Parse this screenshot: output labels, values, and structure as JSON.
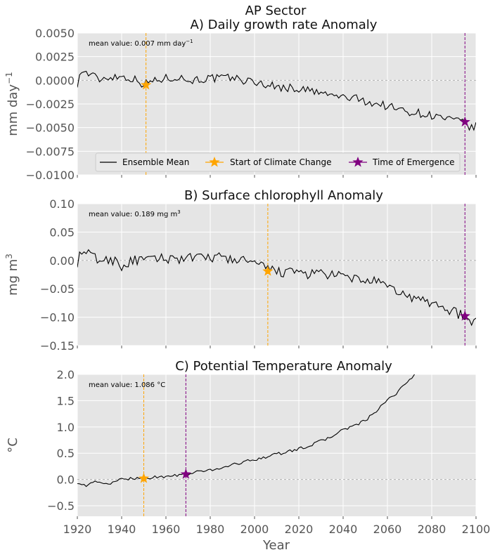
{
  "figure": {
    "suptitle": "AP Sector",
    "xlabel": "Year",
    "xlim": [
      1920,
      2100
    ],
    "xticks": [
      1920,
      1940,
      1960,
      1980,
      2000,
      2020,
      2040,
      2060,
      2080,
      2100
    ],
    "colors": {
      "background": "#e5e5e5",
      "grid": "#ffffff",
      "line": "#000000",
      "start_marker": "#ffa500",
      "toe_marker": "#800080",
      "zero_line": "#b0b0b0",
      "text": "#555555"
    }
  },
  "legend": {
    "placement": "lower-center of panel A",
    "items": [
      {
        "label": "Ensemble Mean",
        "kind": "line",
        "color": "#000000"
      },
      {
        "label": "Start of Climate Change",
        "kind": "star",
        "color": "#ffa500"
      },
      {
        "label": "Time of Emergence",
        "kind": "star",
        "color": "#800080"
      }
    ]
  },
  "chart_data": [
    {
      "type": "line",
      "title": "A) Daily growth rate Anomaly",
      "ylabel_main": "mm day",
      "ylabel_sup": "−1",
      "ylim": [
        -0.01,
        0.005
      ],
      "yticks": [
        -0.01,
        -0.0075,
        -0.005,
        -0.0025,
        0.0,
        0.0025,
        0.005
      ],
      "ytick_labels": [
        "−0.0100",
        "−0.0075",
        "−0.0050",
        "−0.0025",
        "0.0000",
        "0.0025",
        "0.0050"
      ],
      "annotation_main": "mean value: 0.007 mm day",
      "annotation_sup": "−1",
      "grid": true,
      "start_of_climate_change": {
        "x": 1951,
        "y": -0.0005
      },
      "time_of_emergence": {
        "x": 2095,
        "y": -0.0044
      },
      "anchors": [
        [
          1920,
          -0.0003
        ],
        [
          1922,
          0.001
        ],
        [
          1926,
          0.0006
        ],
        [
          1930,
          0.0001
        ],
        [
          1935,
          0.0004
        ],
        [
          1940,
          0.0004
        ],
        [
          1945,
          0.0002
        ],
        [
          1950,
          -0.0004
        ],
        [
          1955,
          0.0
        ],
        [
          1960,
          0.0002
        ],
        [
          1965,
          0.0004
        ],
        [
          1970,
          0.0
        ],
        [
          1975,
          0.0001
        ],
        [
          1980,
          0.0002
        ],
        [
          1985,
          0.0002
        ],
        [
          1990,
          0.0003
        ],
        [
          1995,
          0.0
        ],
        [
          2000,
          -0.0002
        ],
        [
          2005,
          -0.0004
        ],
        [
          2010,
          -0.0007
        ],
        [
          2015,
          -0.0008
        ],
        [
          2020,
          -0.0009
        ],
        [
          2025,
          -0.0011
        ],
        [
          2030,
          -0.0014
        ],
        [
          2035,
          -0.0016
        ],
        [
          2040,
          -0.0018
        ],
        [
          2045,
          -0.0019
        ],
        [
          2050,
          -0.0022
        ],
        [
          2055,
          -0.0025
        ],
        [
          2060,
          -0.0027
        ],
        [
          2065,
          -0.0031
        ],
        [
          2070,
          -0.0033
        ],
        [
          2075,
          -0.0035
        ],
        [
          2080,
          -0.0037
        ],
        [
          2085,
          -0.004
        ],
        [
          2090,
          -0.0043
        ],
        [
          2095,
          -0.0045
        ],
        [
          2098,
          -0.0051
        ],
        [
          2100,
          -0.0048
        ]
      ],
      "noise": 0.00045
    },
    {
      "type": "line",
      "title": "B) Surface chlorophyll Anomaly",
      "ylabel_main": "mg m",
      "ylabel_sup": "3",
      "ylim": [
        -0.15,
        0.1
      ],
      "yticks": [
        -0.15,
        -0.1,
        -0.05,
        0.0,
        0.05,
        0.1
      ],
      "ytick_labels": [
        "−0.15",
        "−0.10",
        "−0.05",
        "0.00",
        "0.05",
        "0.10"
      ],
      "annotation_main": "mean value: 0.189 mg m",
      "annotation_sup": "3",
      "grid": true,
      "start_of_climate_change": {
        "x": 2006,
        "y": -0.019
      },
      "time_of_emergence": {
        "x": 2095,
        "y": -0.098
      },
      "anchors": [
        [
          1920,
          -0.003
        ],
        [
          1922,
          0.015
        ],
        [
          1926,
          0.01
        ],
        [
          1930,
          0.0
        ],
        [
          1935,
          0.0
        ],
        [
          1938,
          0.002
        ],
        [
          1940,
          -0.012
        ],
        [
          1945,
          0.0
        ],
        [
          1950,
          0.0
        ],
        [
          1955,
          0.002
        ],
        [
          1960,
          0.004
        ],
        [
          1965,
          0.003
        ],
        [
          1970,
          0.005
        ],
        [
          1975,
          0.003
        ],
        [
          1980,
          0.006
        ],
        [
          1985,
          0.005
        ],
        [
          1990,
          0.002
        ],
        [
          1995,
          0.0
        ],
        [
          2000,
          -0.005
        ],
        [
          2005,
          -0.015
        ],
        [
          2010,
          -0.018
        ],
        [
          2015,
          -0.022
        ],
        [
          2020,
          -0.02
        ],
        [
          2025,
          -0.025
        ],
        [
          2030,
          -0.022
        ],
        [
          2035,
          -0.027
        ],
        [
          2040,
          -0.028
        ],
        [
          2045,
          -0.032
        ],
        [
          2050,
          -0.035
        ],
        [
          2055,
          -0.038
        ],
        [
          2060,
          -0.048
        ],
        [
          2065,
          -0.055
        ],
        [
          2070,
          -0.065
        ],
        [
          2075,
          -0.07
        ],
        [
          2080,
          -0.075
        ],
        [
          2085,
          -0.082
        ],
        [
          2090,
          -0.09
        ],
        [
          2095,
          -0.1
        ],
        [
          2098,
          -0.115
        ],
        [
          2100,
          -0.105
        ]
      ],
      "noise": 0.009
    },
    {
      "type": "line",
      "title": "C) Potential Temperature Anomaly",
      "ylabel_main": "°C",
      "ylabel_sup": "",
      "ylim": [
        -0.7,
        2.0
      ],
      "yticks": [
        -0.5,
        0.0,
        0.5,
        1.0,
        1.5,
        2.0
      ],
      "ytick_labels": [
        "−0.5",
        "0.0",
        "0.5",
        "1.0",
        "1.5",
        "2.0"
      ],
      "annotation_main": "mean value: 1.086 °C",
      "annotation_sup": "",
      "grid": true,
      "start_of_climate_change": {
        "x": 1950,
        "y": 0.02
      },
      "time_of_emergence": {
        "x": 1969,
        "y": 0.1
      },
      "anchors": [
        [
          1920,
          -0.05
        ],
        [
          1924,
          -0.12
        ],
        [
          1928,
          -0.05
        ],
        [
          1932,
          -0.07
        ],
        [
          1936,
          -0.07
        ],
        [
          1940,
          0.0
        ],
        [
          1945,
          0.03
        ],
        [
          1950,
          0.02
        ],
        [
          1955,
          0.05
        ],
        [
          1960,
          0.05
        ],
        [
          1965,
          0.08
        ],
        [
          1970,
          0.1
        ],
        [
          1975,
          0.15
        ],
        [
          1980,
          0.18
        ],
        [
          1985,
          0.22
        ],
        [
          1990,
          0.28
        ],
        [
          1995,
          0.33
        ],
        [
          2000,
          0.38
        ],
        [
          2005,
          0.43
        ],
        [
          2010,
          0.48
        ],
        [
          2015,
          0.53
        ],
        [
          2020,
          0.58
        ],
        [
          2025,
          0.65
        ],
        [
          2030,
          0.73
        ],
        [
          2035,
          0.82
        ],
        [
          2040,
          0.95
        ],
        [
          2045,
          1.02
        ],
        [
          2050,
          1.12
        ],
        [
          2055,
          1.3
        ],
        [
          2060,
          1.5
        ],
        [
          2065,
          1.68
        ],
        [
          2070,
          1.9
        ],
        [
          2073,
          2.05
        ]
      ],
      "noise": 0.028
    }
  ]
}
